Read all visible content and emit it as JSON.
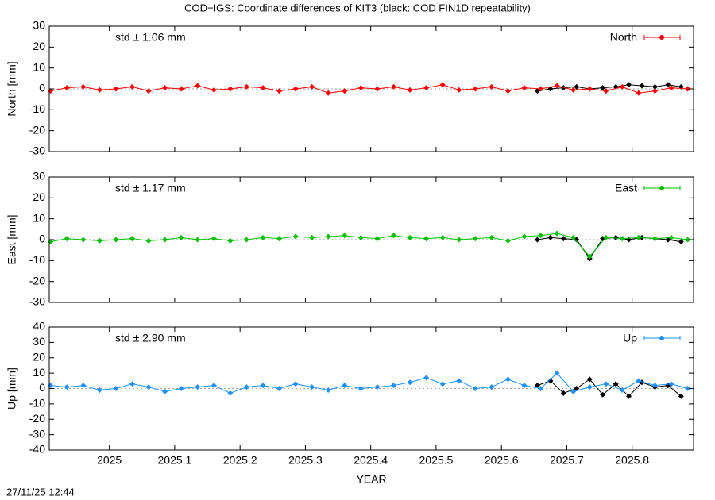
{
  "chart_data": [
    {
      "type": "line",
      "title": "COD−IGS: Coordinate differences of KIT3 (black: COD FIN1D repeatability)",
      "ylabel": "North [mm]",
      "annotation": "std ± 1.06 mm",
      "xlim": [
        2024.908,
        2025.894
      ],
      "xticks": [
        2025,
        2025.1,
        2025.2,
        2025.3,
        2025.4,
        2025.5,
        2025.6,
        2025.7,
        2025.8
      ],
      "ylim": [
        -30,
        30
      ],
      "yticks": [
        -30,
        -20,
        -10,
        0,
        10,
        20,
        30
      ],
      "series": [
        {
          "color": "#000000",
          "x": [
            2025.655,
            2025.675,
            2025.695,
            2025.715,
            2025.735,
            2025.755,
            2025.775,
            2025.795,
            2025.815,
            2025.835,
            2025.855,
            2025.875
          ],
          "values": [
            -1,
            0,
            0.5,
            1,
            0,
            0.5,
            1,
            2,
            1.5,
            1,
            2,
            1
          ]
        },
        {
          "name": "North",
          "color": "#ff0000",
          "x": [
            2024.91,
            2024.935,
            2024.96,
            2024.985,
            2025.01,
            2025.035,
            2025.06,
            2025.085,
            2025.11,
            2025.135,
            2025.16,
            2025.185,
            2025.21,
            2025.235,
            2025.26,
            2025.285,
            2025.31,
            2025.335,
            2025.36,
            2025.385,
            2025.41,
            2025.435,
            2025.46,
            2025.485,
            2025.51,
            2025.535,
            2025.56,
            2025.585,
            2025.61,
            2025.635,
            2025.66,
            2025.685,
            2025.71,
            2025.735,
            2025.76,
            2025.785,
            2025.81,
            2025.835,
            2025.86,
            2025.885
          ],
          "values": [
            -1,
            0.5,
            1,
            -0.5,
            0,
            1,
            -1,
            0.5,
            0,
            1.5,
            -0.5,
            0,
            1,
            0.5,
            -1,
            0,
            1,
            -2,
            -1,
            0.5,
            0,
            1,
            -0.5,
            0.5,
            2,
            -0.5,
            0,
            1,
            -1,
            0.5,
            0,
            1.5,
            -0.5,
            0,
            -1,
            1,
            -2,
            -1,
            0.5,
            0
          ]
        }
      ]
    },
    {
      "type": "line",
      "ylabel": "East [mm]",
      "annotation": "std ± 1.17 mm",
      "xlim": [
        2024.908,
        2025.894
      ],
      "xticks": [
        2025,
        2025.1,
        2025.2,
        2025.3,
        2025.4,
        2025.5,
        2025.6,
        2025.7,
        2025.8
      ],
      "ylim": [
        -30,
        30
      ],
      "yticks": [
        -30,
        -20,
        -10,
        0,
        10,
        20,
        30
      ],
      "series": [
        {
          "color": "#000000",
          "x": [
            2025.655,
            2025.675,
            2025.695,
            2025.715,
            2025.735,
            2025.755,
            2025.775,
            2025.795,
            2025.815,
            2025.835,
            2025.855,
            2025.875
          ],
          "values": [
            0,
            1,
            0.5,
            0,
            -9,
            0.5,
            1,
            0,
            1,
            0.5,
            0,
            -1
          ]
        },
        {
          "name": "East",
          "color": "#00c000",
          "x": [
            2024.91,
            2024.935,
            2024.96,
            2024.985,
            2025.01,
            2025.035,
            2025.06,
            2025.085,
            2025.11,
            2025.135,
            2025.16,
            2025.185,
            2025.21,
            2025.235,
            2025.26,
            2025.285,
            2025.31,
            2025.335,
            2025.36,
            2025.385,
            2025.41,
            2025.435,
            2025.46,
            2025.485,
            2025.51,
            2025.535,
            2025.56,
            2025.585,
            2025.61,
            2025.635,
            2025.66,
            2025.685,
            2025.71,
            2025.735,
            2025.76,
            2025.785,
            2025.81,
            2025.835,
            2025.86,
            2025.885
          ],
          "values": [
            -1,
            0.5,
            0,
            -0.5,
            0,
            0.5,
            -0.5,
            0,
            1,
            0,
            0.5,
            -0.5,
            0,
            1,
            0.5,
            1.5,
            1,
            1.5,
            2,
            1,
            0.5,
            2,
            1,
            0.5,
            1,
            0,
            0.5,
            1,
            -0.5,
            1.5,
            2,
            3,
            1,
            -8,
            1,
            0.5,
            1,
            0.5,
            1,
            0
          ]
        }
      ]
    },
    {
      "type": "line",
      "ylabel": "Up [mm]",
      "annotation": "std ± 2.90 mm",
      "xlabel": "YEAR",
      "xlim": [
        2024.908,
        2025.894
      ],
      "xticks": [
        2025,
        2025.1,
        2025.2,
        2025.3,
        2025.4,
        2025.5,
        2025.6,
        2025.7,
        2025.8
      ],
      "ylim": [
        -40,
        40
      ],
      "yticks": [
        -40,
        -30,
        -20,
        -10,
        0,
        10,
        20,
        30,
        40
      ],
      "series": [
        {
          "color": "#000000",
          "x": [
            2025.655,
            2025.675,
            2025.695,
            2025.715,
            2025.735,
            2025.755,
            2025.775,
            2025.795,
            2025.815,
            2025.835,
            2025.855,
            2025.875
          ],
          "values": [
            2,
            5,
            -3,
            0,
            6,
            -4,
            3,
            -5,
            4,
            1,
            2,
            -5
          ]
        },
        {
          "name": "Up",
          "color": "#1e90ff",
          "x": [
            2024.91,
            2024.935,
            2024.96,
            2024.985,
            2025.01,
            2025.035,
            2025.06,
            2025.085,
            2025.11,
            2025.135,
            2025.16,
            2025.185,
            2025.21,
            2025.235,
            2025.26,
            2025.285,
            2025.31,
            2025.335,
            2025.36,
            2025.385,
            2025.41,
            2025.435,
            2025.46,
            2025.485,
            2025.51,
            2025.535,
            2025.56,
            2025.585,
            2025.61,
            2025.635,
            2025.66,
            2025.685,
            2025.71,
            2025.735,
            2025.76,
            2025.785,
            2025.81,
            2025.835,
            2025.86,
            2025.885
          ],
          "values": [
            2,
            1,
            2,
            -1,
            0,
            3,
            1,
            -2,
            0,
            1,
            2,
            -3,
            1,
            2,
            0,
            3,
            1,
            -1,
            2,
            0,
            1,
            2,
            4,
            7,
            3,
            5,
            0,
            1,
            6,
            2,
            0,
            10,
            -2,
            1,
            3,
            -1,
            5,
            2,
            3,
            0
          ]
        }
      ]
    }
  ],
  "timestamp": "27/11/25 12:44"
}
